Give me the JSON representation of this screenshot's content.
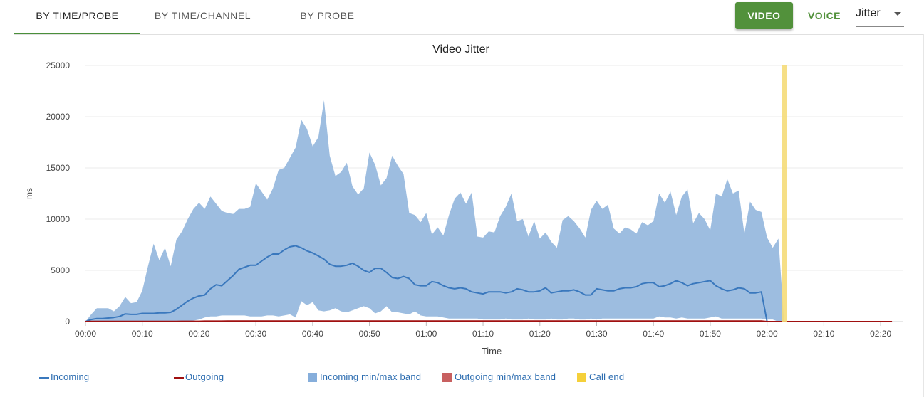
{
  "tabs": [
    {
      "label": "BY TIME/PROBE",
      "active": true
    },
    {
      "label": "BY TIME/CHANNEL",
      "active": false
    },
    {
      "label": "BY PROBE",
      "active": false
    }
  ],
  "controls": {
    "video_label": "VIDEO",
    "voice_label": "VOICE",
    "metric_value": "Jitter"
  },
  "colors": {
    "accent": "#52913b",
    "incoming": "#3a78bd",
    "incoming_band": "#9dbde0",
    "outgoing": "#a01010",
    "outgoing_band": "#c86060",
    "call_end": "#f5dc79"
  },
  "chart_data": {
    "type": "area",
    "title": "Video Jitter",
    "xlabel": "Time",
    "ylabel": "ms",
    "ylim": [
      0,
      25000
    ],
    "yticks": [
      0,
      5000,
      10000,
      15000,
      20000,
      25000
    ],
    "xticks": [
      "00:00",
      "00:10",
      "00:20",
      "00:30",
      "00:40",
      "00:50",
      "01:00",
      "01:10",
      "01:20",
      "01:30",
      "01:40",
      "01:50",
      "02:00",
      "02:10",
      "02:20"
    ],
    "xlim_minutes": [
      0,
      144
    ],
    "x_minutes": [
      0,
      1,
      2,
      3,
      4,
      5,
      6,
      7,
      8,
      9,
      10,
      11,
      12,
      13,
      14,
      15,
      16,
      17,
      18,
      19,
      20,
      21,
      22,
      23,
      24,
      25,
      26,
      27,
      28,
      29,
      30,
      31,
      32,
      33,
      34,
      35,
      36,
      37,
      38,
      39,
      40,
      41,
      42,
      43,
      44,
      45,
      46,
      47,
      48,
      49,
      50,
      51,
      52,
      53,
      54,
      55,
      56,
      57,
      58,
      59,
      60,
      61,
      62,
      63,
      64,
      65,
      66,
      67,
      68,
      69,
      70,
      71,
      72,
      73,
      74,
      75,
      76,
      77,
      78,
      79,
      80,
      81,
      82,
      83,
      84,
      85,
      86,
      87,
      88,
      89,
      90,
      91,
      92,
      93,
      94,
      95,
      96,
      97,
      98,
      99,
      100,
      101,
      102,
      103,
      104,
      105,
      106,
      107,
      108,
      109,
      110,
      111,
      112,
      113,
      114,
      115,
      116,
      117,
      118,
      119,
      120,
      121,
      122,
      123
    ],
    "grid": true,
    "legend_position": "bottom",
    "call_end_minute": 123,
    "series": [
      {
        "name": "Incoming",
        "kind": "line",
        "values": [
          0,
          200,
          300,
          300,
          350,
          400,
          500,
          750,
          700,
          700,
          800,
          800,
          800,
          850,
          850,
          900,
          1200,
          1600,
          2000,
          2300,
          2500,
          2600,
          3200,
          3600,
          3500,
          4000,
          4500,
          5100,
          5300,
          5500,
          5500,
          5900,
          6300,
          6600,
          6600,
          7000,
          7300,
          7400,
          7200,
          6900,
          6700,
          6400,
          6100,
          5600,
          5400,
          5400,
          5500,
          5700,
          5400,
          5000,
          4800,
          5200,
          5200,
          4800,
          4300,
          4200,
          4400,
          4200,
          3600,
          3500,
          3500,
          3900,
          3800,
          3500,
          3300,
          3200,
          3300,
          3200,
          2900,
          2800,
          2700,
          2900,
          2900,
          2900,
          2800,
          2900,
          3200,
          3100,
          2900,
          2900,
          3000,
          3300,
          2800,
          2900,
          3000,
          3000,
          3100,
          2900,
          2600,
          2600,
          3200,
          3100,
          3000,
          3000,
          3200,
          3300,
          3300,
          3400,
          3700,
          3800,
          3800,
          3400,
          3500,
          3700,
          4000,
          3800,
          3500,
          3700,
          3800,
          3900,
          4000,
          3500,
          3200,
          3000,
          3100,
          3300,
          3200,
          2800,
          2800,
          2900,
          0,
          0,
          0,
          0
        ]
      },
      {
        "name": "Outgoing",
        "kind": "line",
        "values": [
          0,
          20,
          20,
          20,
          20,
          20,
          20,
          20,
          20,
          20,
          20,
          20,
          20,
          20,
          20,
          20,
          20,
          30,
          30,
          30,
          30,
          40,
          40,
          40,
          40,
          50,
          50,
          50,
          50,
          50,
          50,
          50,
          50,
          50,
          50,
          50,
          50,
          50,
          50,
          50,
          50,
          50,
          50,
          50,
          50,
          50,
          50,
          50,
          50,
          50,
          50,
          50,
          50,
          50,
          50,
          50,
          50,
          50,
          50,
          50,
          50,
          50,
          50,
          50,
          50,
          50,
          50,
          50,
          50,
          50,
          50,
          50,
          50,
          50,
          50,
          50,
          50,
          50,
          50,
          50,
          50,
          50,
          50,
          50,
          50,
          50,
          50,
          50,
          50,
          50,
          50,
          50,
          50,
          50,
          50,
          50,
          50,
          50,
          50,
          50,
          50,
          50,
          50,
          50,
          50,
          50,
          50,
          50,
          50,
          50,
          50,
          50,
          50,
          50,
          50,
          50,
          50,
          50,
          50,
          50,
          0,
          0,
          0,
          0
        ]
      },
      {
        "name": "Incoming min/max band",
        "kind": "band",
        "max": [
          0,
          700,
          1300,
          1300,
          1300,
          1000,
          1500,
          2400,
          1800,
          1900,
          3000,
          5400,
          7600,
          6000,
          7200,
          5400,
          8000,
          8800,
          10000,
          11000,
          11600,
          11000,
          12200,
          11500,
          10800,
          10600,
          10500,
          11000,
          11000,
          11200,
          13500,
          12700,
          11900,
          13000,
          14800,
          15000,
          16000,
          17000,
          19700,
          18800,
          17100,
          18000,
          21600,
          16200,
          14200,
          14600,
          15500,
          13200,
          12400,
          13000,
          16500,
          15300,
          13300,
          14000,
          16200,
          15200,
          14400,
          10600,
          10400,
          9700,
          10600,
          8500,
          9200,
          8400,
          10400,
          12000,
          12600,
          11500,
          12600,
          8300,
          8200,
          8800,
          8700,
          10300,
          11200,
          12500,
          9800,
          10000,
          8300,
          9800,
          8100,
          8700,
          7800,
          7200,
          9900,
          10300,
          9800,
          9100,
          8200,
          10900,
          11800,
          11000,
          11400,
          9100,
          8600,
          9200,
          9000,
          8600,
          9700,
          9400,
          9800,
          12500,
          11600,
          12700,
          10400,
          12200,
          12900,
          9600,
          10600,
          10000,
          8900,
          12500,
          12200,
          13900,
          12500,
          12800,
          8600,
          11700,
          10900,
          10700,
          8200,
          7200,
          8100,
          0
        ],
        "min": [
          0,
          0,
          0,
          0,
          0,
          0,
          0,
          0,
          0,
          0,
          0,
          0,
          0,
          0,
          0,
          0,
          0,
          0,
          0,
          100,
          200,
          400,
          500,
          500,
          600,
          600,
          600,
          600,
          600,
          500,
          500,
          500,
          600,
          600,
          500,
          600,
          700,
          400,
          2000,
          1600,
          1900,
          1100,
          1000,
          1100,
          1300,
          1000,
          900,
          1100,
          1300,
          1500,
          1300,
          800,
          1000,
          1500,
          900,
          900,
          800,
          700,
          1000,
          600,
          500,
          500,
          500,
          400,
          300,
          300,
          300,
          300,
          300,
          300,
          200,
          200,
          200,
          200,
          300,
          200,
          200,
          200,
          300,
          200,
          200,
          200,
          300,
          200,
          200,
          300,
          300,
          200,
          200,
          300,
          200,
          300,
          300,
          300,
          300,
          300,
          300,
          300,
          300,
          300,
          300,
          500,
          400,
          400,
          300,
          400,
          300,
          300,
          300,
          300,
          400,
          500,
          300,
          300,
          300,
          300,
          300,
          300,
          300,
          300,
          200,
          200,
          0,
          0
        ]
      },
      {
        "name": "Outgoing min/max band",
        "kind": "band",
        "max": [
          0,
          30,
          30,
          30,
          30,
          30,
          30,
          30,
          30,
          30,
          40,
          40,
          40,
          40,
          40,
          40,
          40,
          50,
          50,
          50,
          50,
          60,
          60,
          60,
          60,
          70,
          70,
          70,
          70,
          70,
          70,
          70,
          70,
          70,
          70,
          70,
          70,
          70,
          70,
          70,
          70,
          70,
          70,
          70,
          70,
          70,
          70,
          70,
          70,
          70,
          70,
          70,
          70,
          70,
          70,
          70,
          70,
          70,
          70,
          70,
          70,
          70,
          70,
          70,
          70,
          70,
          70,
          70,
          70,
          70,
          70,
          70,
          70,
          70,
          70,
          70,
          70,
          70,
          70,
          70,
          70,
          70,
          70,
          70,
          70,
          70,
          70,
          70,
          70,
          70,
          70,
          70,
          70,
          70,
          70,
          70,
          70,
          70,
          70,
          70,
          70,
          70,
          70,
          70,
          70,
          70,
          70,
          70,
          70,
          70,
          70,
          70,
          70,
          70,
          70,
          70,
          70,
          70,
          70,
          70,
          0,
          0,
          0,
          0
        ],
        "min": [
          0,
          0,
          0,
          0,
          0,
          0,
          0,
          0,
          0,
          0,
          0,
          0,
          0,
          0,
          0,
          0,
          0,
          0,
          0,
          0,
          0,
          0,
          0,
          0,
          0,
          0,
          0,
          0,
          0,
          0,
          0,
          0,
          0,
          0,
          0,
          0,
          0,
          0,
          0,
          0,
          0,
          0,
          0,
          0,
          0,
          0,
          0,
          0,
          0,
          0,
          0,
          0,
          0,
          0,
          0,
          0,
          0,
          0,
          0,
          0,
          0,
          0,
          0,
          0,
          0,
          0,
          0,
          0,
          0,
          0,
          0,
          0,
          0,
          0,
          0,
          0,
          0,
          0,
          0,
          0,
          0,
          0,
          0,
          0,
          0,
          0,
          0,
          0,
          0,
          0,
          0,
          0,
          0,
          0,
          0,
          0,
          0,
          0,
          0,
          0,
          0,
          0,
          0,
          0,
          0,
          0,
          0,
          0,
          0,
          0,
          0,
          0,
          0,
          0,
          0,
          0,
          0,
          0,
          0,
          0,
          0,
          0,
          0,
          0
        ]
      },
      {
        "name": "Call end",
        "kind": "marker"
      }
    ]
  }
}
